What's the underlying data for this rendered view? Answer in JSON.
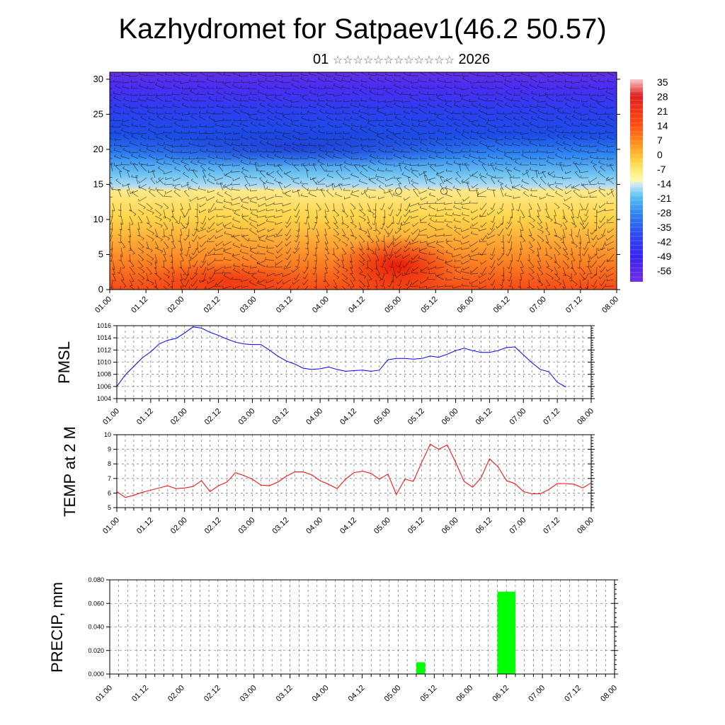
{
  "header": {
    "title": "Kazhydromet for Satpaev1(46.2 50.57)",
    "subtitle_day": "01",
    "subtitle_month_glyphs": "☆☆☆☆☆☆☆☆☆☆☆☆",
    "subtitle_year": "2026"
  },
  "chart_data": [
    {
      "type": "heatmap",
      "title": "",
      "xlabel": "",
      "ylabel": "",
      "x_ticks": [
        "01.00",
        "01.12",
        "02.00",
        "02.12",
        "03.00",
        "03.12",
        "04.00",
        "04.12",
        "05.00",
        "05.12",
        "06.00",
        "06.12",
        "07.00",
        "07.12",
        "08.00"
      ],
      "y_ticks": [
        0,
        5,
        10,
        15,
        20,
        25,
        30
      ],
      "ylim": [
        0,
        31
      ],
      "colorbar_labels": [
        "35",
        "28",
        "21",
        "14",
        "7",
        "0",
        "-7",
        "-14",
        "-21",
        "-28",
        "-35",
        "-42",
        "-49",
        "-56"
      ],
      "colorbar_values": [
        35,
        28,
        21,
        14,
        7,
        0,
        -7,
        -14,
        -21,
        -28,
        -35,
        -42,
        -49,
        -56
      ],
      "overlay": "wind barbs",
      "colors": {
        "warm": "#ff3300",
        "neutral": "#ffff66",
        "cold": "#3311ff"
      }
    },
    {
      "type": "line",
      "ylabel": "PMSL",
      "ylim": [
        1004,
        1016
      ],
      "y_ticks": [
        1004,
        1006,
        1008,
        1010,
        1012,
        1014,
        1016
      ],
      "x_ticks": [
        "01.00",
        "01.12",
        "02.00",
        "02.12",
        "03.00",
        "03.12",
        "04.00",
        "04.12",
        "05.00",
        "05.12",
        "06.00",
        "06.12",
        "07.00",
        "07.12",
        "08.00"
      ],
      "color": "#0000ff",
      "x_step_hours": 3,
      "values": [
        1006.0,
        1007.9,
        1009.3,
        1010.7,
        1011.7,
        1013.0,
        1013.6,
        1013.9,
        1014.8,
        1015.8,
        1015.6,
        1014.9,
        1014.4,
        1013.8,
        1013.3,
        1013.0,
        1012.9,
        1012.9,
        1012.0,
        1011.0,
        1010.2,
        1009.7,
        1009.0,
        1008.8,
        1008.9,
        1009.2,
        1008.8,
        1008.5,
        1008.6,
        1008.7,
        1008.5,
        1008.7,
        1010.4,
        1010.6,
        1010.6,
        1010.5,
        1010.6,
        1011.0,
        1010.8,
        1011.3,
        1011.9,
        1012.3,
        1011.9,
        1011.6,
        1011.6,
        1011.9,
        1012.4,
        1012.5,
        1011.2,
        1009.9,
        1008.8,
        1008.4,
        1006.7,
        1005.9
      ]
    },
    {
      "type": "line",
      "ylabel": "TEMP at 2 M",
      "ylim": [
        5,
        10
      ],
      "y_ticks": [
        5,
        6,
        7,
        8,
        9,
        10
      ],
      "x_ticks": [
        "01.00",
        "01.12",
        "02.00",
        "02.12",
        "03.00",
        "03.12",
        "04.00",
        "04.12",
        "05.00",
        "05.12",
        "06.00",
        "06.12",
        "07.00",
        "07.12",
        "08.00"
      ],
      "color": "#ff0000",
      "x_step_hours": 3,
      "values": [
        6.1,
        5.7,
        5.85,
        6.05,
        6.2,
        6.35,
        6.5,
        6.3,
        6.35,
        6.45,
        6.85,
        6.1,
        6.5,
        6.75,
        7.4,
        7.2,
        6.95,
        6.55,
        6.5,
        6.75,
        7.15,
        7.45,
        7.45,
        7.25,
        6.85,
        6.6,
        6.3,
        6.95,
        7.4,
        7.5,
        7.35,
        6.95,
        7.3,
        5.9,
        6.95,
        6.8,
        8.1,
        9.35,
        9.0,
        9.3,
        8.1,
        6.8,
        6.4,
        7.05,
        8.35,
        7.8,
        6.85,
        6.65,
        6.1,
        5.95,
        5.95,
        6.25,
        6.65,
        6.65,
        6.6,
        6.35,
        6.7
      ]
    },
    {
      "type": "bar",
      "ylabel": "PRECIP, mm",
      "ylim": [
        0,
        0.08
      ],
      "y_tick_labels": [
        "0.000",
        "0.020",
        "0.040",
        "0.060",
        "0.080"
      ],
      "y_ticks": [
        0,
        0.02,
        0.04,
        0.06,
        0.08
      ],
      "x_ticks": [
        "01.00",
        "01.12",
        "02.00",
        "02.12",
        "03.00",
        "03.12",
        "04.00",
        "04.12",
        "05.00",
        "05.12",
        "06.00",
        "06.12",
        "07.00",
        "07.12",
        "08.00"
      ],
      "color": "#00ff00",
      "bars": [
        {
          "x_hours": 102,
          "x_end_hours": 105,
          "value": 0.01
        },
        {
          "x_hours": 129,
          "x_end_hours": 135,
          "value": 0.07
        }
      ]
    }
  ]
}
